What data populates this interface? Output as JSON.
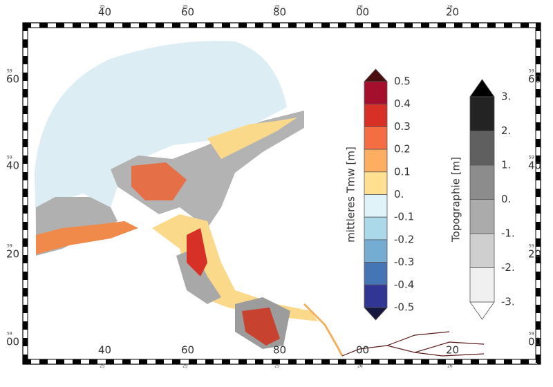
{
  "map": {
    "top_ticks": [
      {
        "prefix": "25",
        "label": "40"
      },
      {
        "prefix": "25",
        "label": "60"
      },
      {
        "prefix": "25",
        "label": "80"
      },
      {
        "prefix": "26",
        "label": "00"
      },
      {
        "prefix": "26",
        "label": "20"
      }
    ],
    "side_ticks": [
      {
        "prefix": "59",
        "label": "60"
      },
      {
        "prefix": "59",
        "label": "40"
      },
      {
        "prefix": "59",
        "label": "20"
      },
      {
        "prefix": "59",
        "label": "00"
      }
    ]
  },
  "colorbars": [
    {
      "label": "mittleres Tmw [m]",
      "ticks": [
        0.5,
        0.4,
        0.3,
        0.2,
        0.1,
        {
          "value": 0,
          "label": "0."
        },
        -0.1,
        -0.2,
        -0.3,
        -0.4,
        -0.5
      ],
      "colors": [
        "#a50f2d",
        "#d73027",
        "#f46d43",
        "#fdae61",
        "#fee090",
        "#e0f3f8",
        "#abd9e9",
        "#74add1",
        "#4575b4",
        "#313695"
      ],
      "over_color": "#4a0e0e",
      "under_color": "#15173f"
    },
    {
      "label": "Topographie [m]",
      "ticks": [
        {
          "value": 3,
          "label": "3."
        },
        {
          "value": 2,
          "label": "2."
        },
        {
          "value": 1,
          "label": "1."
        },
        {
          "value": 0,
          "label": "0."
        },
        {
          "value": -1,
          "label": "-1."
        },
        {
          "value": -2,
          "label": "-2."
        },
        {
          "value": -3,
          "label": "-3."
        }
      ],
      "colors": [
        "#232323",
        "#5f5f5f",
        "#8c8c8c",
        "#ababab",
        "#cfcfcf",
        "#f0f0f0"
      ],
      "over_color": "#000000",
      "under_color": "#ffffff"
    }
  ]
}
